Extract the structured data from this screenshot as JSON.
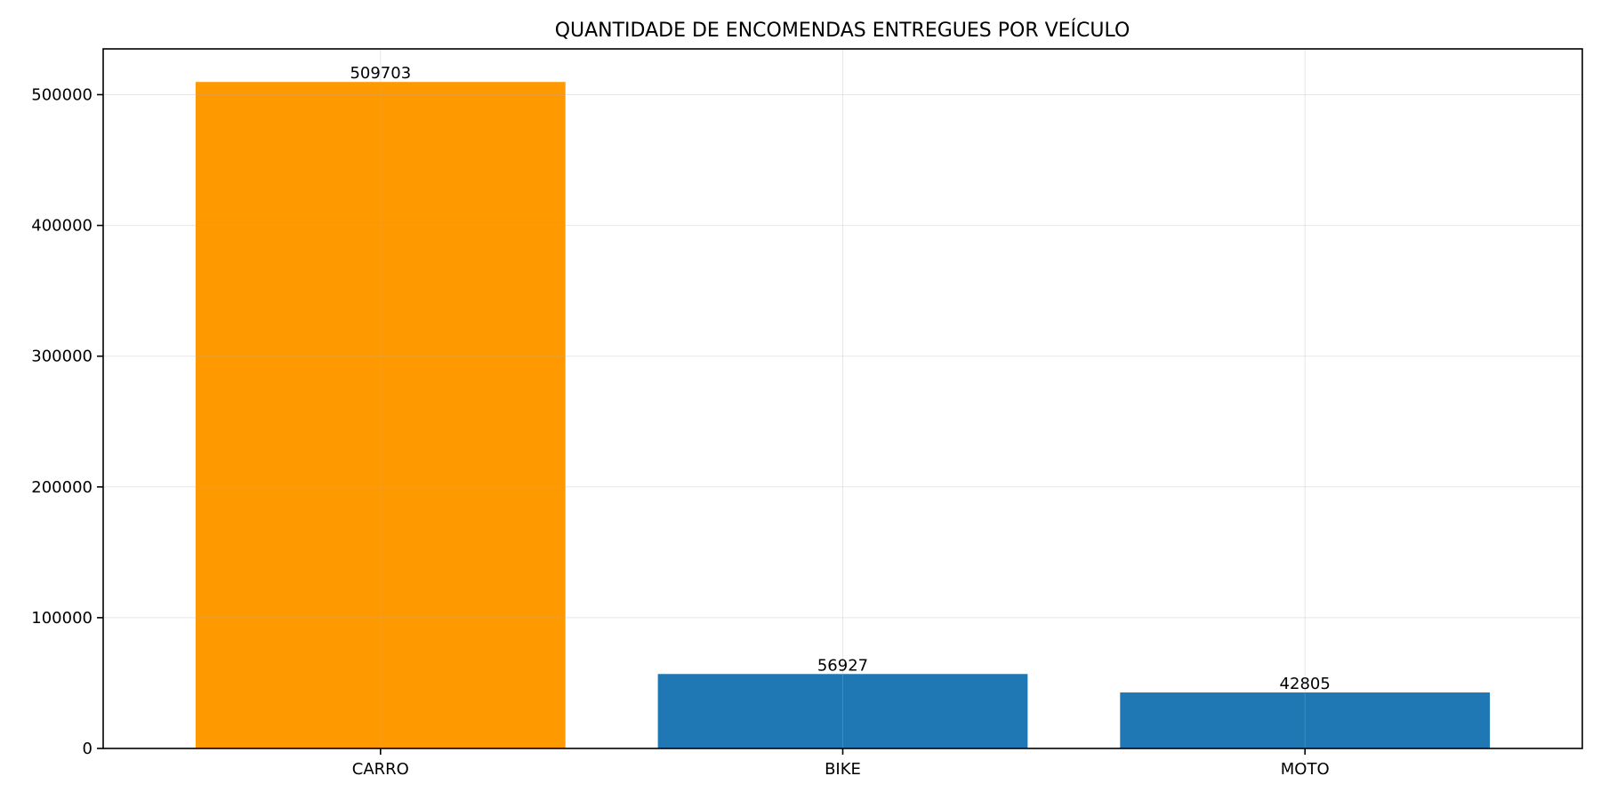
{
  "chart_data": {
    "type": "bar",
    "title": "QUANTIDADE DE ENCOMENDAS ENTREGUES POR VEÍCULO",
    "xlabel": "",
    "ylabel": "",
    "categories": [
      "CARRO",
      "BIKE",
      "MOTO"
    ],
    "values": [
      509703,
      56927,
      42805
    ],
    "value_labels": [
      "509703",
      "56927",
      "42805"
    ],
    "bar_colors": [
      "#ff9900",
      "#1f77b4",
      "#1f77b4"
    ],
    "ylim": [
      0,
      535000
    ],
    "y_ticks": [
      0,
      100000,
      200000,
      300000,
      400000,
      500000
    ],
    "y_tick_labels": [
      "0",
      "100000",
      "200000",
      "300000",
      "400000",
      "500000"
    ],
    "grid": true
  }
}
